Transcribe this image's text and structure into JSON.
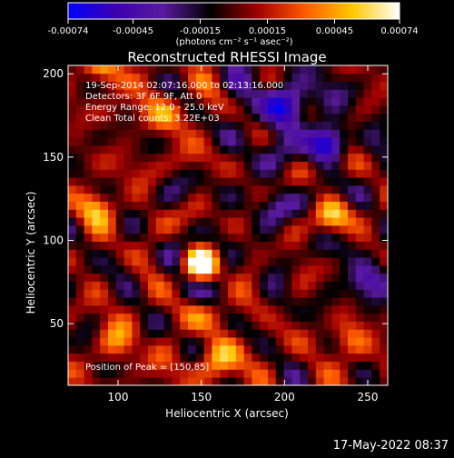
{
  "chart_data": {
    "type": "heatmap",
    "title": "Reconstructed RHESSI Image",
    "xlabel": "Heliocentric X (arcsec)",
    "ylabel": "Heliocentric Y (arcsec)",
    "xlim": [
      70,
      262
    ],
    "ylim": [
      13,
      205
    ],
    "x_ticks": [
      100,
      150,
      200,
      250
    ],
    "y_ticks": [
      50,
      100,
      150,
      200
    ],
    "colorbar": {
      "range": [
        -0.00074,
        0.00074
      ],
      "tick_values": [
        -0.00074,
        -0.00045,
        -0.00015,
        0.00015,
        0.00045,
        0.00074
      ],
      "tick_labels": [
        "-0.00074",
        "-0.00045",
        "-0.00015",
        "0.00015",
        "0.00045",
        "0.00074"
      ],
      "unit_label": "(photons cm⁻² s⁻¹ asec⁻²)",
      "colors": [
        "#0000ff",
        "#3b00ae",
        "#5a1a9e",
        "#000000",
        "#a00000",
        "#ff5a00",
        "#ffc800",
        "#ffffff"
      ]
    },
    "info_lines": [
      "19-Sep-2014 02:07:16.000 to 02:13:16.000",
      "Detectors: 3F 6F 9F, Att 0",
      "Energy Range: 12.0 - 25.0 keV",
      "Clean     Total counts: 3.22E+03"
    ],
    "peak_label": "Position of Peak = [150,85]",
    "peak": [
      150,
      85
    ],
    "sources": [
      {
        "x": 150,
        "y": 85,
        "amp": 0.00074,
        "sigma": 8
      },
      {
        "x": 86,
        "y": 120,
        "amp": 0.0004,
        "sigma": 11
      },
      {
        "x": 90,
        "y": 205,
        "amp": 0.00035,
        "sigma": 12
      },
      {
        "x": 228,
        "y": 115,
        "amp": 0.00045,
        "sigma": 9
      },
      {
        "x": 160,
        "y": 30,
        "amp": 0.00038,
        "sigma": 14
      },
      {
        "x": 100,
        "y": 40,
        "amp": 0.0003,
        "sigma": 12
      },
      {
        "x": 240,
        "y": 40,
        "amp": 0.0003,
        "sigma": 12
      },
      {
        "x": 130,
        "y": 175,
        "amp": 0.00028,
        "sigma": 14
      },
      {
        "x": 200,
        "y": 180,
        "amp": -0.00045,
        "sigma": 16
      },
      {
        "x": 226,
        "y": 158,
        "amp": -0.0005,
        "sigma": 9
      },
      {
        "x": 250,
        "y": 75,
        "amp": -0.00035,
        "sigma": 12
      },
      {
        "x": 195,
        "y": 120,
        "amp": -0.00028,
        "sigma": 10
      }
    ]
  },
  "footer": {
    "timestamp": "17-May-2022 08:37"
  }
}
